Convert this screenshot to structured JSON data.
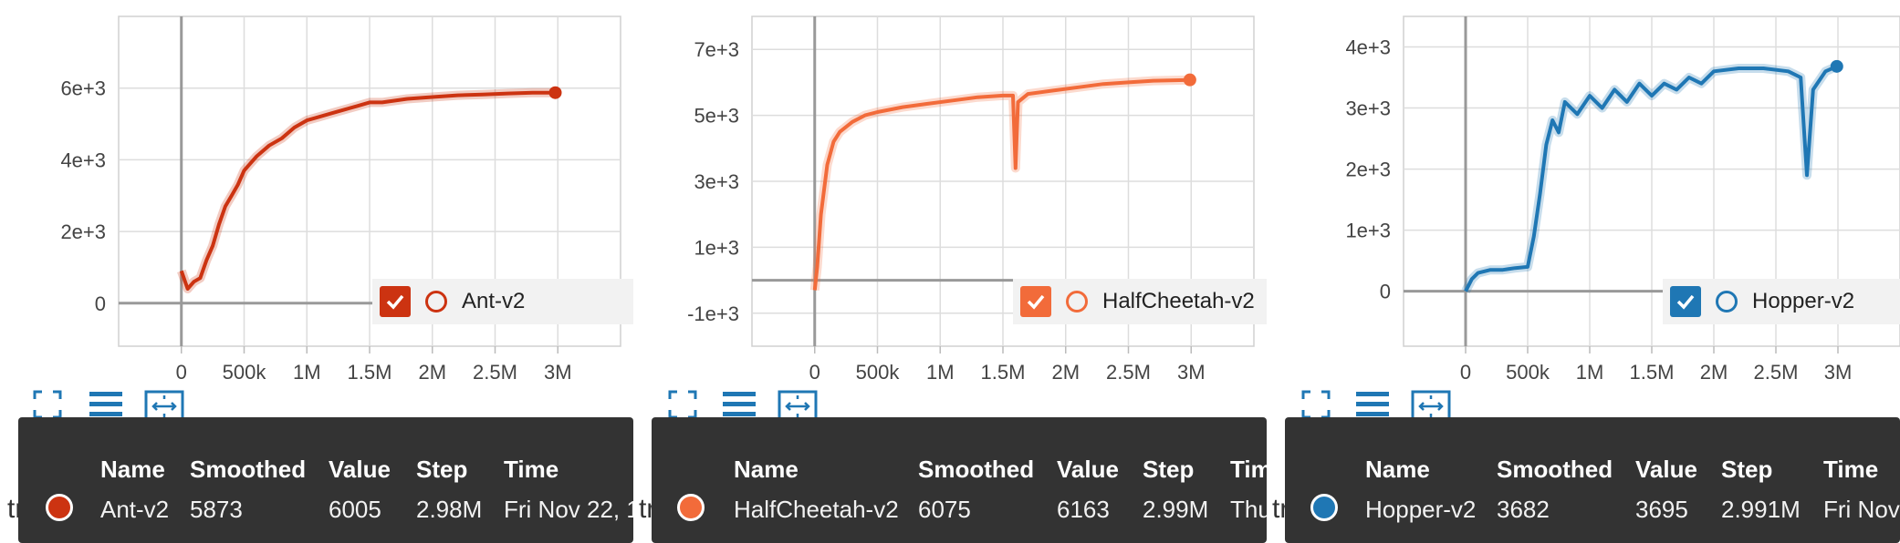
{
  "chart_data": [
    {
      "type": "line",
      "series": [
        {
          "name": "Ant-v2",
          "color": "#cc3311",
          "x": [
            0,
            0.05,
            0.1,
            0.15,
            0.2,
            0.25,
            0.3,
            0.35,
            0.4,
            0.45,
            0.5,
            0.55,
            0.6,
            0.7,
            0.8,
            0.9,
            1.0,
            1.1,
            1.2,
            1.3,
            1.4,
            1.5,
            1.6,
            1.8,
            2.0,
            2.2,
            2.4,
            2.6,
            2.8,
            2.98
          ],
          "y": [
            900,
            400,
            600,
            700,
            1200,
            1600,
            2200,
            2700,
            3000,
            3300,
            3700,
            3900,
            4100,
            4400,
            4600,
            4900,
            5100,
            5200,
            5300,
            5400,
            5500,
            5600,
            5600,
            5700,
            5750,
            5800,
            5820,
            5850,
            5870,
            5873
          ]
        }
      ],
      "x_ticks": [
        "0",
        "500k",
        "1M",
        "1.5M",
        "2M",
        "2.5M",
        "3M"
      ],
      "y_ticks": [
        "0",
        "2e+3",
        "4e+3",
        "6e+3"
      ],
      "xlim": [
        -0.5,
        3.5
      ],
      "ylim": [
        -1200,
        8000
      ],
      "y_tick_values": [
        0,
        2000,
        4000,
        6000
      ]
    },
    {
      "type": "line",
      "series": [
        {
          "name": "HalfCheetah-v2",
          "color": "#f26b3a",
          "x": [
            0,
            0.02,
            0.05,
            0.1,
            0.15,
            0.2,
            0.3,
            0.4,
            0.5,
            0.7,
            0.9,
            1.1,
            1.3,
            1.5,
            1.58,
            1.6,
            1.62,
            1.7,
            1.9,
            2.1,
            2.3,
            2.5,
            2.7,
            2.99
          ],
          "y": [
            -300,
            400,
            2000,
            3500,
            4200,
            4500,
            4800,
            5000,
            5100,
            5250,
            5350,
            5450,
            5550,
            5600,
            5600,
            3400,
            5400,
            5650,
            5750,
            5850,
            5950,
            6000,
            6050,
            6075
          ]
        }
      ],
      "x_ticks": [
        "0",
        "500k",
        "1M",
        "1.5M",
        "2M",
        "2.5M",
        "3M"
      ],
      "y_ticks": [
        "-1e+3",
        "1e+3",
        "3e+3",
        "5e+3",
        "7e+3"
      ],
      "xlim": [
        -0.5,
        3.5
      ],
      "ylim": [
        -2000,
        8000
      ],
      "y_tick_values": [
        -1000,
        1000,
        3000,
        5000,
        7000
      ]
    },
    {
      "type": "line",
      "series": [
        {
          "name": "Hopper-v2",
          "color": "#1f77b4",
          "x": [
            0,
            0.05,
            0.1,
            0.2,
            0.3,
            0.4,
            0.5,
            0.55,
            0.6,
            0.65,
            0.7,
            0.75,
            0.8,
            0.9,
            1.0,
            1.1,
            1.2,
            1.3,
            1.4,
            1.5,
            1.6,
            1.7,
            1.8,
            1.9,
            2.0,
            2.2,
            2.4,
            2.6,
            2.7,
            2.75,
            2.8,
            2.9,
            2.991
          ],
          "y": [
            0,
            200,
            300,
            350,
            350,
            380,
            400,
            900,
            1600,
            2400,
            2800,
            2600,
            3100,
            2900,
            3200,
            3000,
            3300,
            3100,
            3400,
            3200,
            3400,
            3300,
            3500,
            3400,
            3600,
            3650,
            3650,
            3600,
            3500,
            1900,
            3300,
            3600,
            3682
          ]
        }
      ],
      "x_ticks": [
        "0",
        "500k",
        "1M",
        "1.5M",
        "2M",
        "2.5M",
        "3M"
      ],
      "y_ticks": [
        "0",
        "1e+3",
        "2e+3",
        "3e+3",
        "4e+3"
      ],
      "xlim": [
        -0.5,
        3.5
      ],
      "ylim": [
        -900,
        4500
      ],
      "y_tick_values": [
        0,
        1000,
        2000,
        3000,
        4000
      ]
    }
  ],
  "legends": [
    {
      "label": "Ant-v2",
      "color": "#cc3311"
    },
    {
      "label": "HalfCheetah-v2",
      "color": "#f26b3a"
    },
    {
      "label": "Hopper-v2",
      "color": "#1f77b4"
    }
  ],
  "tooltips": [
    {
      "headers": [
        "Name",
        "Smoothed",
        "Value",
        "Step",
        "Time"
      ],
      "row": [
        "Ant-v2",
        "5873",
        "6005",
        "2.98M",
        "Fri Nov 22, 1"
      ],
      "color": "#cc3311",
      "bg_text": "trai"
    },
    {
      "headers": [
        "Name",
        "Smoothed",
        "Value",
        "Step",
        "Tim"
      ],
      "row": [
        "HalfCheetah-v2",
        "6075",
        "6163",
        "2.99M",
        "Thu"
      ],
      "color": "#f26b3a",
      "bg_text": "trai"
    },
    {
      "headers": [
        "Name",
        "Smoothed",
        "Value",
        "Step",
        "Time"
      ],
      "row": [
        "Hopper-v2",
        "3682",
        "3695",
        "2.991M",
        "Fri Nov"
      ],
      "color": "#1f77b4",
      "bg_text": "trai"
    }
  ],
  "icons": [
    "expand-icon",
    "list-icon",
    "fit-icon"
  ]
}
